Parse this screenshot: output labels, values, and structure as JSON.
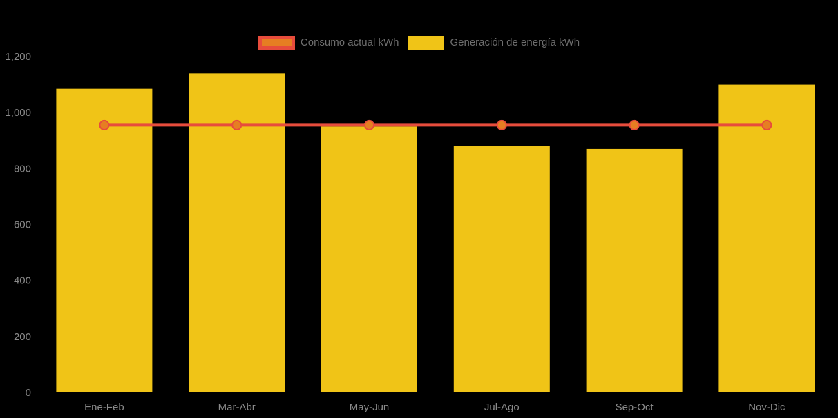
{
  "chart_data": {
    "type": "bar",
    "title": "",
    "categories": [
      "Ene-Feb",
      "Mar-Abr",
      "May-Jun",
      "Jul-Ago",
      "Sep-Oct",
      "Nov-Dic"
    ],
    "series": [
      {
        "name": "Consumo actual kWh",
        "type": "line",
        "color": "#e74c3c",
        "marker_fill": "#e67e22",
        "values": [
          955,
          955,
          955,
          955,
          955,
          955
        ]
      },
      {
        "name": "Generación de energía kWh",
        "type": "bar",
        "color": "#f0c417",
        "values": [
          1085,
          1140,
          950,
          880,
          870,
          1100
        ]
      }
    ],
    "xlabel": "",
    "ylabel": "",
    "ylim": [
      0,
      1200
    ],
    "yticks": {
      "values": [
        0,
        200,
        400,
        600,
        800,
        1000,
        1200
      ],
      "labels": [
        "0",
        "200",
        "400",
        "600",
        "800",
        "1,000",
        "1,200"
      ]
    },
    "grid": false,
    "legend_position": "top-center"
  },
  "legend": {
    "items": [
      {
        "label": "Consumo actual kWh",
        "swatch_fill": "#e67e22",
        "swatch_border": "#e74c3c"
      },
      {
        "label": "Generación de energía kWh",
        "swatch_fill": "#f0c417",
        "swatch_border": "#f0c417"
      }
    ]
  },
  "colors": {
    "background": "#000000",
    "axis_text": "#8a8a8a",
    "legend_text": "#6e6e6e",
    "bar": "#f0c417",
    "line": "#e74c3c",
    "marker_fill": "#e67e22"
  }
}
